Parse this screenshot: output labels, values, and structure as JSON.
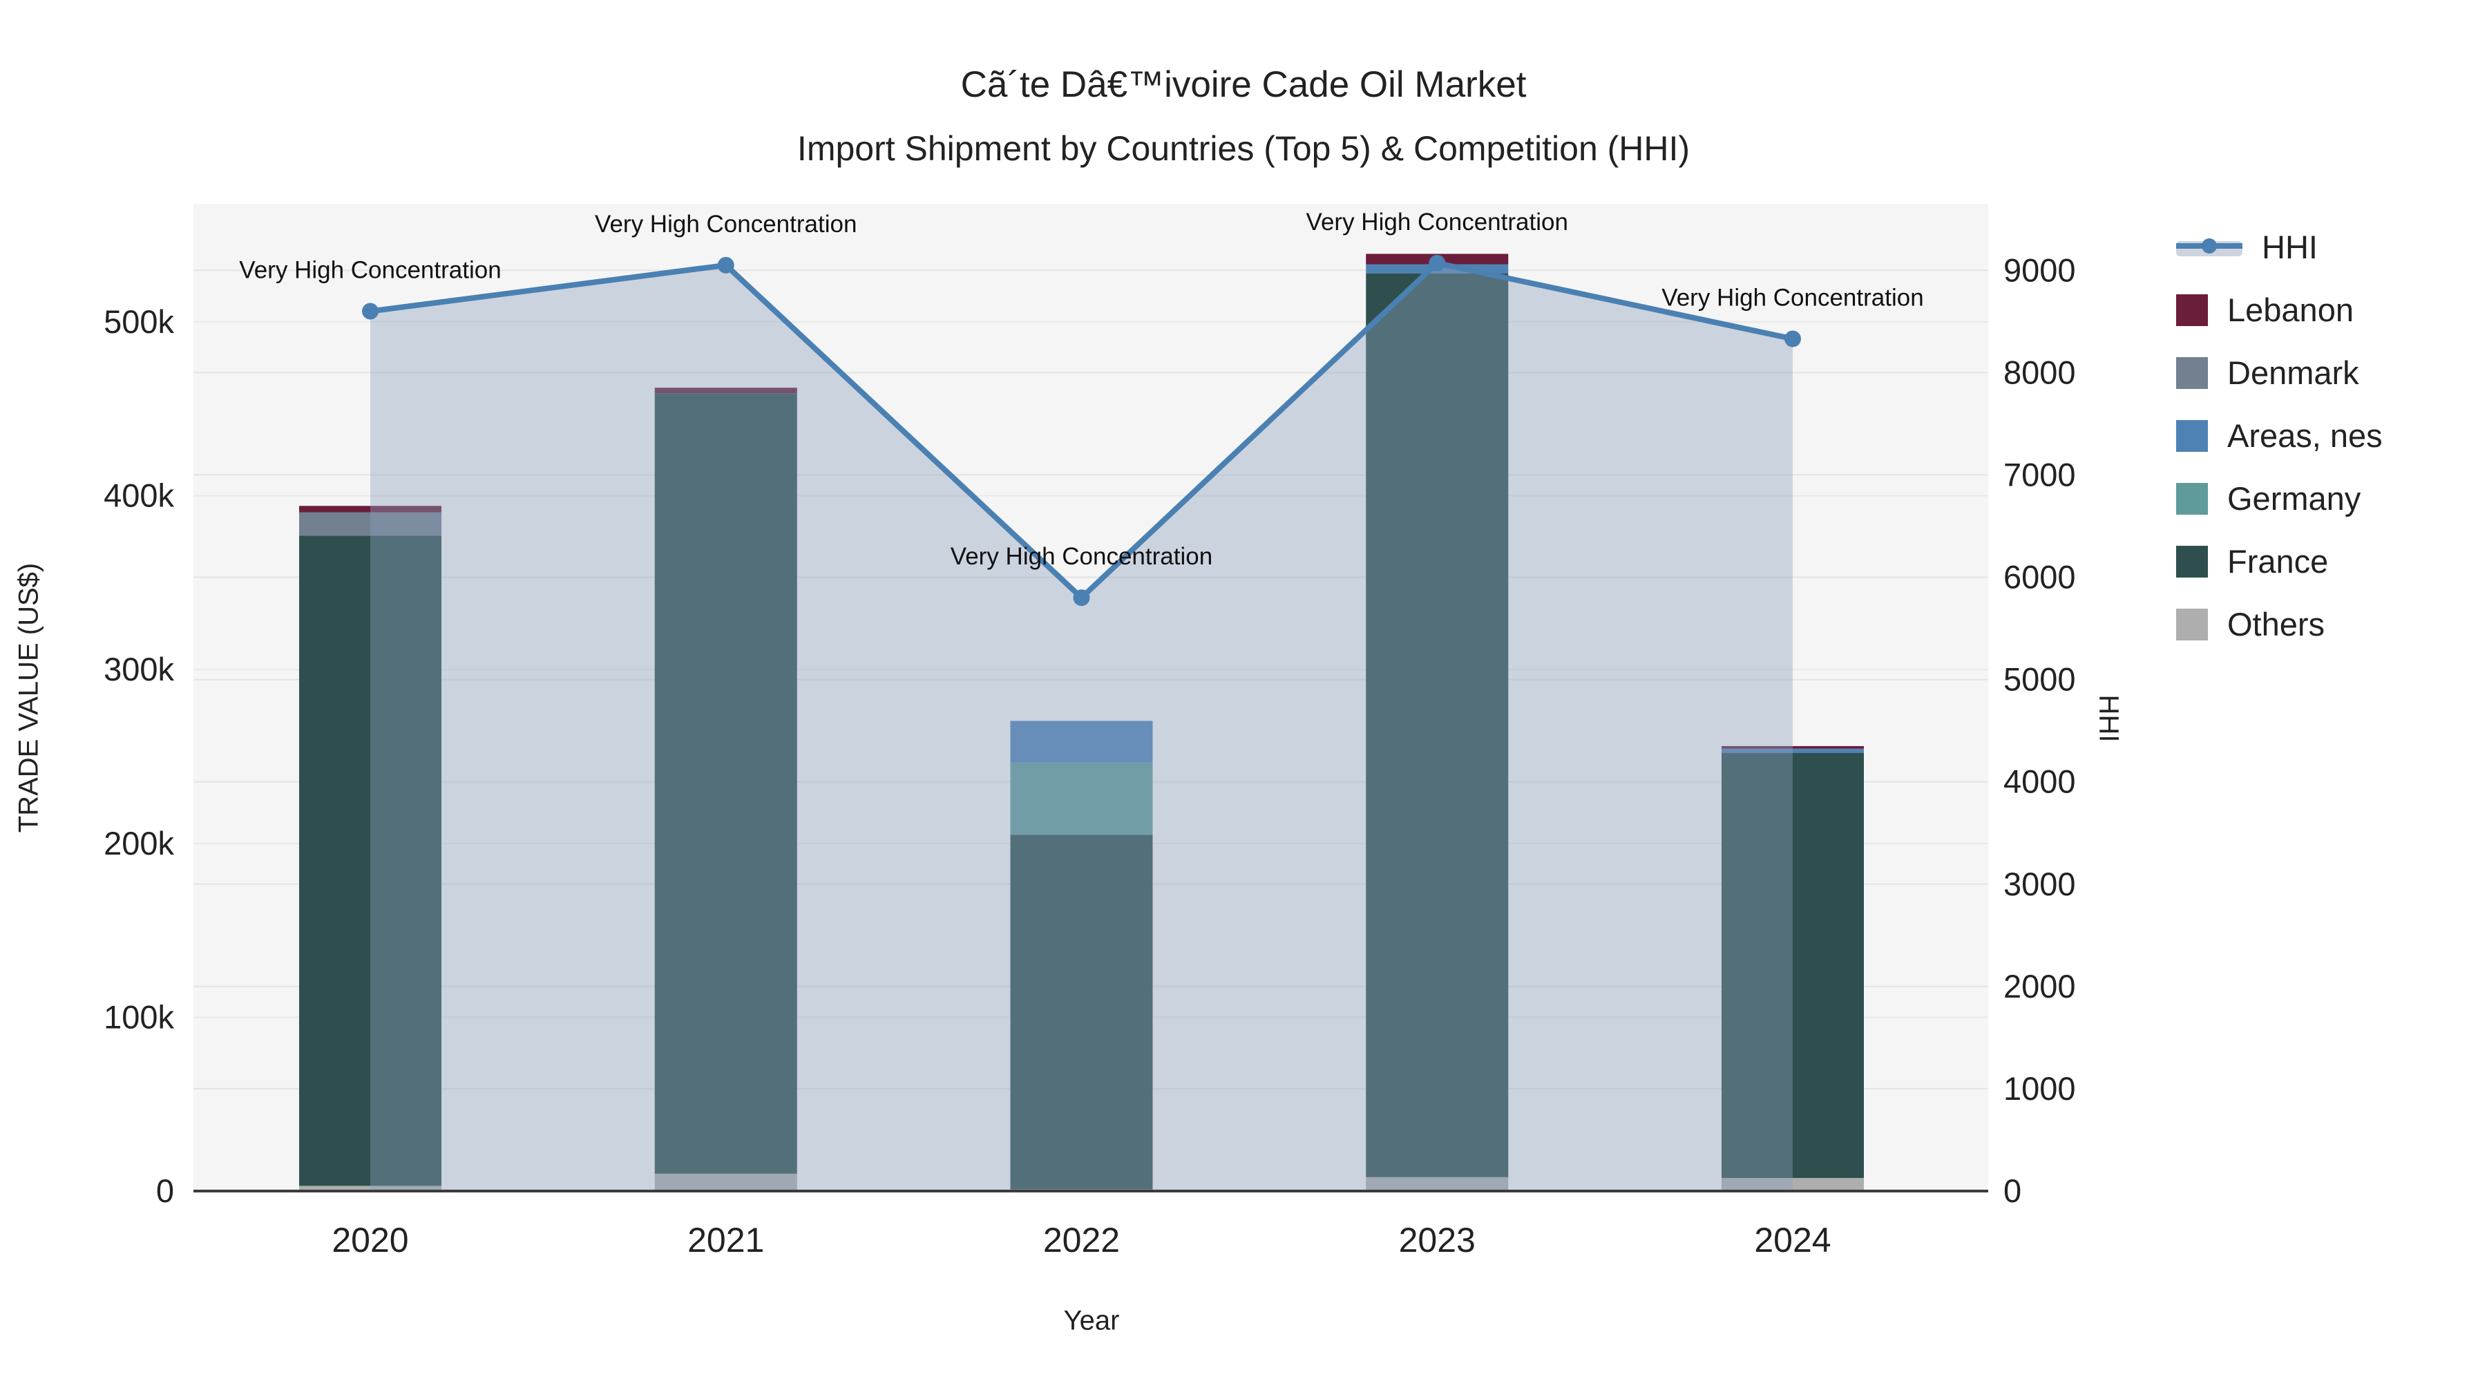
{
  "title": {
    "line1": "Cã´te Dâ€™ivoire Cade Oil Market",
    "line2": "Import Shipment by Countries (Top 5) & Competition (HHI)"
  },
  "axes": {
    "x": {
      "label": "Year",
      "ticks": [
        "2020",
        "2021",
        "2022",
        "2023",
        "2024"
      ]
    },
    "y_left": {
      "label": "TRADE VALUE (US$)",
      "ticks": [
        "0",
        "100k",
        "200k",
        "300k",
        "400k",
        "500k"
      ]
    },
    "y_right": {
      "label": "HHI",
      "ticks": [
        "0",
        "1000",
        "2000",
        "3000",
        "4000",
        "5000",
        "6000",
        "7000",
        "8000",
        "9000"
      ]
    }
  },
  "legend": [
    {
      "label": "HHI",
      "color": "#4a80b2",
      "type": "line"
    },
    {
      "label": "Lebanon",
      "color": "#6b1d3c",
      "type": "swatch"
    },
    {
      "label": "Denmark",
      "color": "#72808f",
      "type": "swatch"
    },
    {
      "label": "Areas, nes",
      "color": "#4f82b4",
      "type": "swatch"
    },
    {
      "label": "Germany",
      "color": "#5f9b9a",
      "type": "swatch"
    },
    {
      "label": "France",
      "color": "#2e4f4d",
      "type": "swatch"
    },
    {
      "label": "Others",
      "color": "#aeaeae",
      "type": "swatch"
    }
  ],
  "chart_data": {
    "type": "bar+line",
    "categories": [
      "2020",
      "2021",
      "2022",
      "2023",
      "2024"
    ],
    "stack_order": "bottom_to_top",
    "series": [
      {
        "name": "Others",
        "color": "#aeaeae",
        "values": [
          3000,
          10000,
          1000,
          8000,
          7500
        ]
      },
      {
        "name": "France",
        "color": "#2e4f4d",
        "values": [
          374000,
          449000,
          204000,
          520000,
          244500
        ]
      },
      {
        "name": "Germany",
        "color": "#5f9b9a",
        "values": [
          0,
          0,
          41500,
          0,
          0
        ]
      },
      {
        "name": "Areas, nes",
        "color": "#4f82b4",
        "values": [
          0,
          0,
          24000,
          5200,
          2500
        ]
      },
      {
        "name": "Denmark",
        "color": "#72808f",
        "values": [
          13500,
          0,
          0,
          0,
          0
        ]
      },
      {
        "name": "Lebanon",
        "color": "#6b1d3c",
        "values": [
          3700,
          3200,
          0,
          6000,
          1500
        ]
      }
    ],
    "bar_totals": [
      394200,
      462200,
      270500,
      539200,
      256000
    ],
    "line": {
      "name": "HHI",
      "color": "#4a80b2",
      "area_color": "rgba(140,160,190,0.40)",
      "axis": "right",
      "values": [
        8600,
        9050,
        5800,
        9070,
        8330
      ]
    },
    "annotations": [
      "Very High Concentration",
      "Very High Concentration",
      "Very High Concentration",
      "Very High Concentration",
      "Very High Concentration"
    ],
    "xlabel": "Year",
    "ylabel_left": "TRADE VALUE (US$)",
    "ylabel_right": "HHI",
    "ylim_left": [
      0,
      568000
    ],
    "ylim_right": [
      0,
      9650
    ],
    "grid": true,
    "legend_position": "right"
  }
}
